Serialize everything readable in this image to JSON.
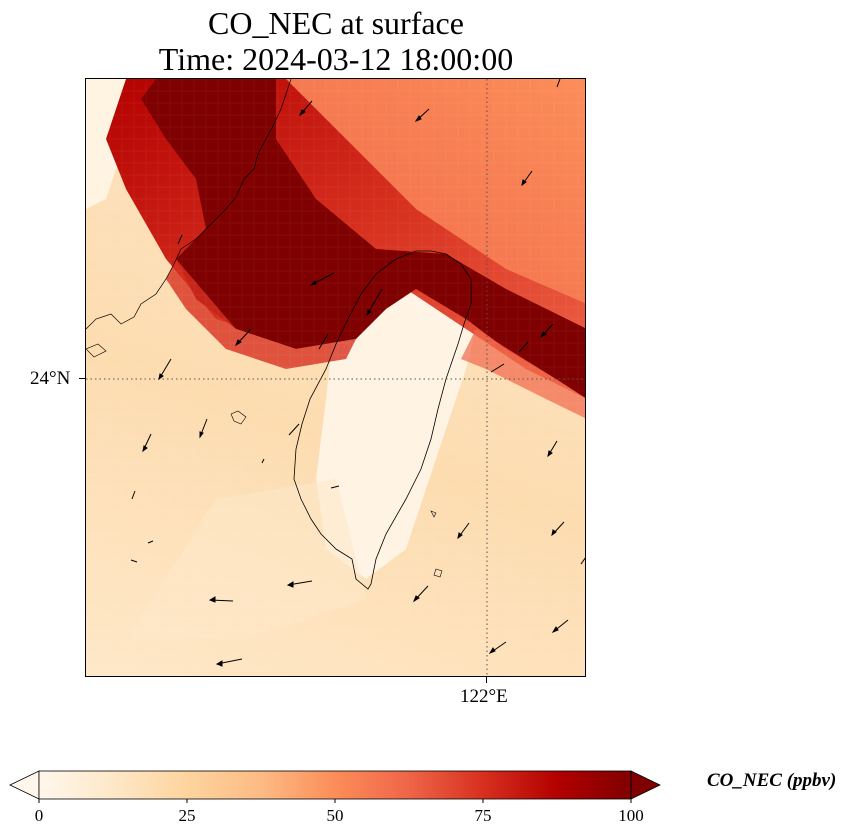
{
  "title": {
    "line1": "CO_NEC at surface",
    "line2": "Time: 2024-03-12 18:00:00"
  },
  "map": {
    "lat_tick_label": "24°N",
    "lon_tick_label": "122°E",
    "gridlines": "dotted",
    "colormap": "OrRd",
    "features": [
      "coastlines",
      "wind-vectors",
      "CO-concentration-field"
    ]
  },
  "colorbar": {
    "ticks": [
      "0",
      "25",
      "50",
      "75",
      "100"
    ],
    "min": 0,
    "max": 100,
    "extend": "both",
    "label": "CO_NEC (ppbv)",
    "colors": [
      "#fff7ec",
      "#fee8c8",
      "#fdd49e",
      "#fdbb84",
      "#fc8d59",
      "#ef6548",
      "#d7301f",
      "#b30000",
      "#7f0000"
    ]
  }
}
